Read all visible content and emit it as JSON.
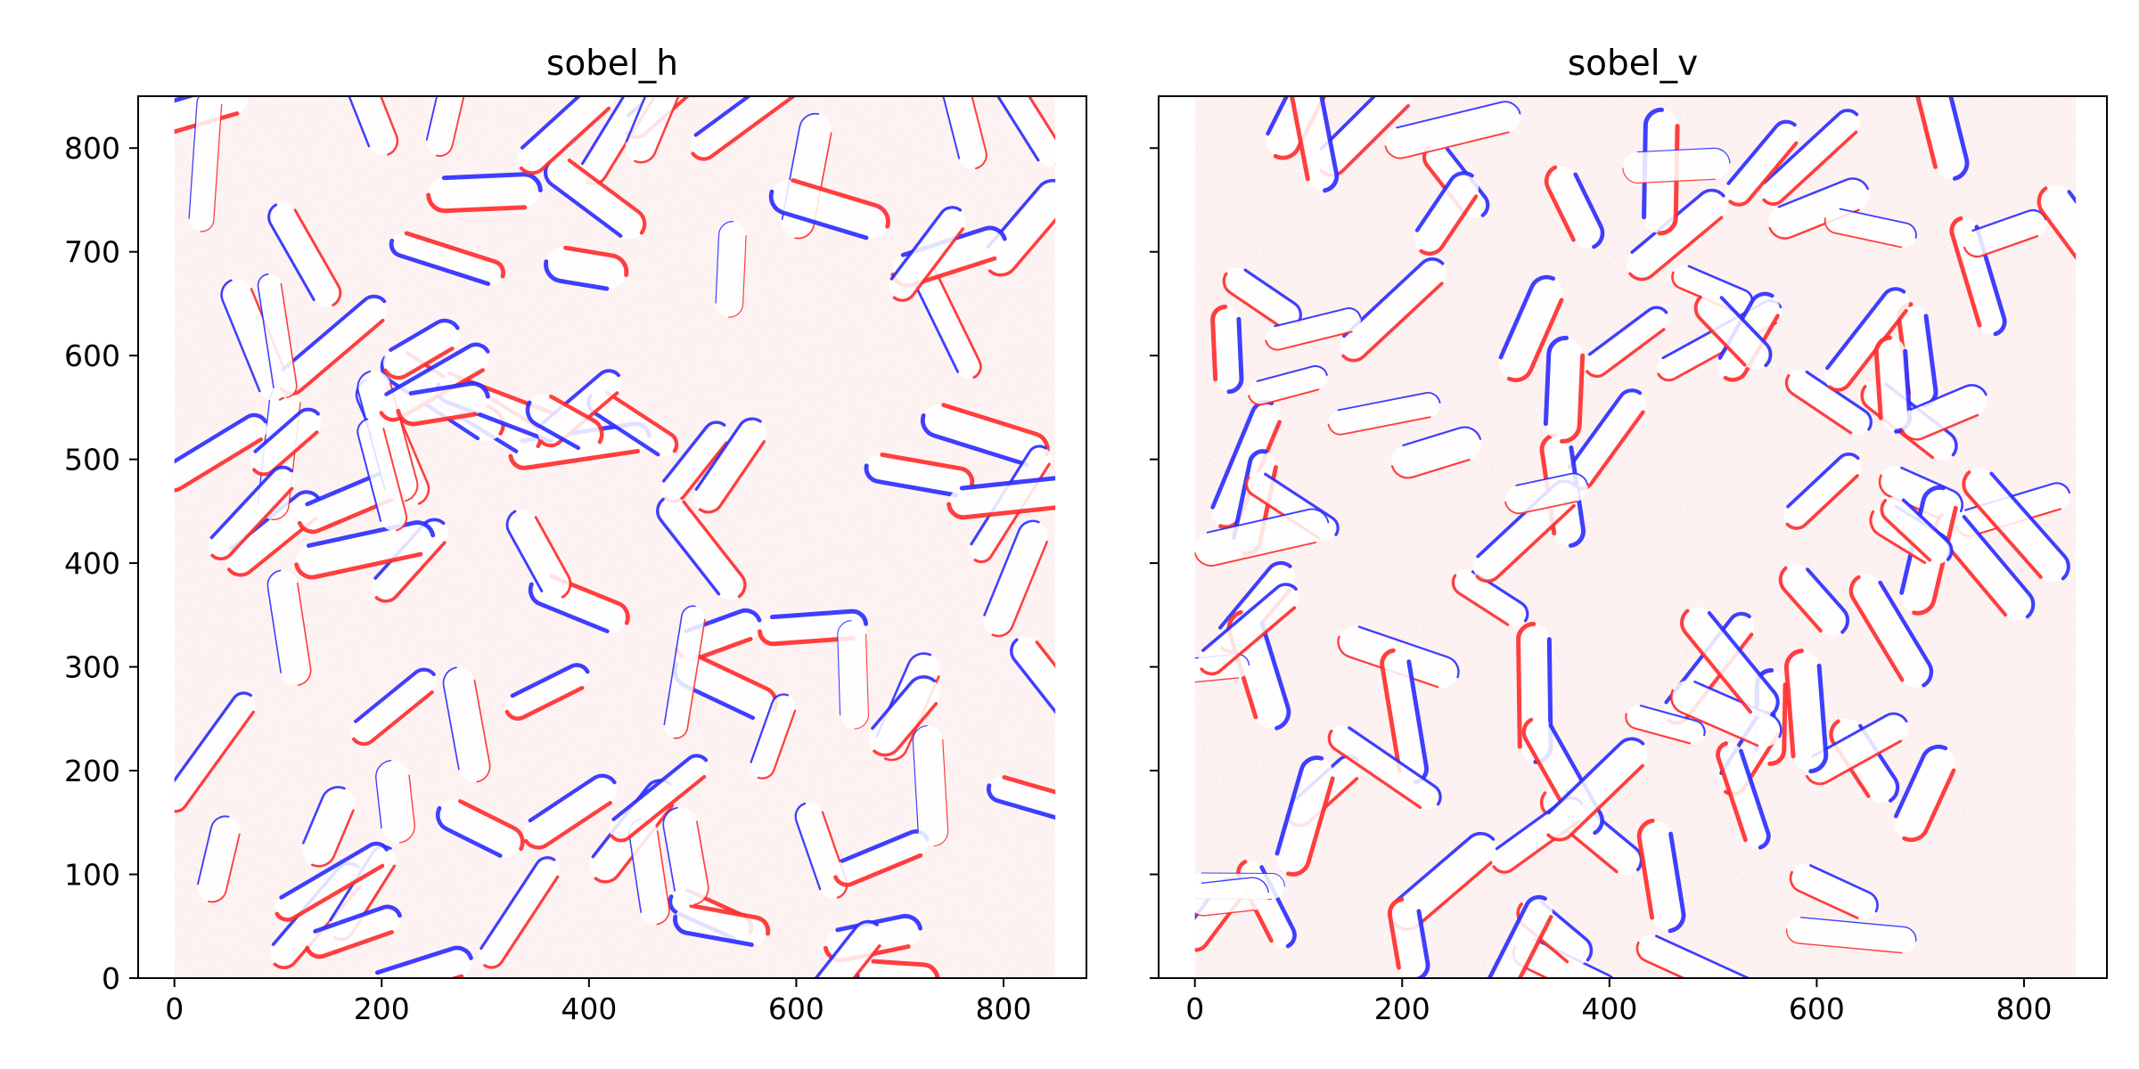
{
  "chart_data": [
    {
      "type": "heatmap",
      "title": "sobel_h",
      "xlim": [
        -35,
        880
      ],
      "ylim": [
        850,
        0
      ],
      "xticks": [
        0,
        200,
        400,
        600,
        800
      ],
      "yticks": [
        0,
        100,
        200,
        300,
        400,
        500,
        600,
        700,
        800
      ],
      "show_ytick_labels": true,
      "colormap": "bwr",
      "colors": {
        "positive": "#ff2a2a",
        "negative": "#2a2aff",
        "zero": "#ffffff"
      },
      "image_extent": {
        "x": [
          0,
          850
        ],
        "y": [
          0,
          850
        ]
      }
    },
    {
      "type": "heatmap",
      "title": "sobel_v",
      "xlim": [
        -35,
        880
      ],
      "ylim": [
        850,
        0
      ],
      "xticks": [
        0,
        200,
        400,
        600,
        800
      ],
      "yticks": [
        0,
        100,
        200,
        300,
        400,
        500,
        600,
        700,
        800
      ],
      "show_ytick_labels": false,
      "colormap": "bwr",
      "colors": {
        "positive": "#ff2a2a",
        "negative": "#2a2aff",
        "zero": "#ffffff"
      },
      "image_extent": {
        "x": [
          0,
          850
        ],
        "y": [
          0,
          850
        ]
      }
    }
  ]
}
